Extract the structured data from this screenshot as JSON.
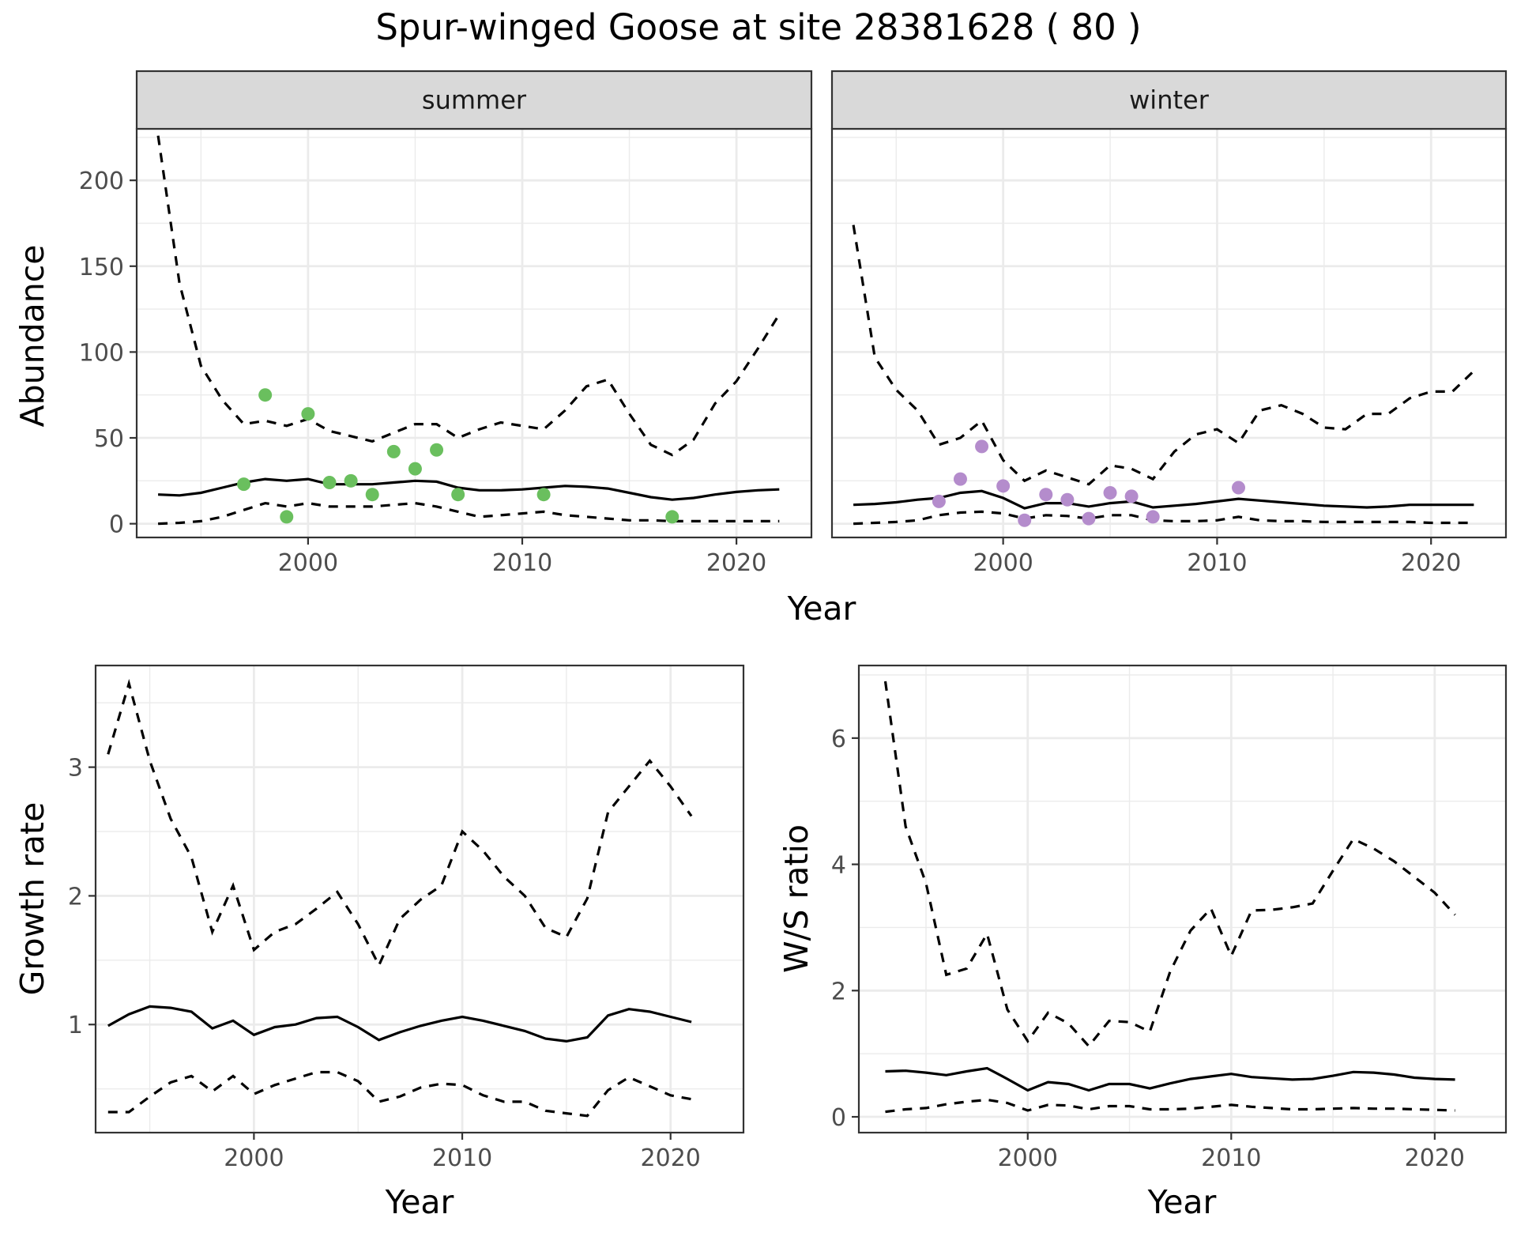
{
  "title": "Spur-winged Goose at site 28381628 ( 80 )",
  "colors": {
    "summer_points": "#6abf5e",
    "winter_points": "#b48ccc",
    "lines": "#000000",
    "strip_background": "#d9d9d9",
    "grid": "#ebebeb"
  },
  "chart_data": [
    {
      "type": "line",
      "facet": "summer",
      "xlabel": "Year",
      "ylabel": "Abundance",
      "xlim": [
        1992,
        2023.5
      ],
      "ylim": [
        -8,
        230
      ],
      "x_ticks": [
        2000,
        2010,
        2020
      ],
      "y_ticks": [
        0,
        50,
        100,
        150,
        200
      ],
      "grid": true,
      "points": {
        "x": [
          1997,
          1998,
          1999,
          2000,
          2001,
          2002,
          2003,
          2004,
          2005,
          2006,
          2007,
          2011,
          2017
        ],
        "y": [
          23,
          75,
          4,
          64,
          24,
          25,
          17,
          42,
          32,
          43,
          17,
          17,
          4
        ]
      },
      "series": [
        {
          "role": "estimate",
          "x": [
            1993,
            1994,
            1995,
            1996,
            1997,
            1998,
            1999,
            2000,
            2001,
            2002,
            2003,
            2004,
            2005,
            2006,
            2007,
            2008,
            2009,
            2010,
            2011,
            2012,
            2013,
            2014,
            2015,
            2016,
            2017,
            2018,
            2019,
            2020,
            2021,
            2022
          ],
          "y": [
            17,
            16.5,
            18,
            21,
            24,
            26,
            25,
            26,
            23,
            23,
            23,
            24,
            25,
            24.5,
            21,
            19.5,
            19.5,
            20,
            21,
            22,
            21.5,
            20.5,
            18,
            15.5,
            14,
            15,
            17,
            18.5,
            19.5,
            20
          ]
        },
        {
          "role": "upper",
          "x": [
            1993,
            1994,
            1995,
            1996,
            1997,
            1998,
            1999,
            2000,
            2001,
            2002,
            2003,
            2004,
            2005,
            2006,
            2007,
            2008,
            2009,
            2010,
            2011,
            2012,
            2013,
            2014,
            2015,
            2016,
            2017,
            2018,
            2019,
            2020,
            2021,
            2022
          ],
          "y": [
            226,
            140,
            92,
            72,
            58,
            60,
            57,
            61,
            54,
            51,
            48,
            53,
            58,
            58,
            50,
            55,
            59,
            57,
            55,
            66,
            80,
            84,
            64,
            46,
            40,
            49,
            70,
            83,
            102,
            122
          ]
        },
        {
          "role": "lower",
          "x": [
            1993,
            1994,
            1995,
            1996,
            1997,
            1998,
            1999,
            2000,
            2001,
            2002,
            2003,
            2004,
            2005,
            2006,
            2007,
            2008,
            2009,
            2010,
            2011,
            2012,
            2013,
            2014,
            2015,
            2016,
            2017,
            2018,
            2019,
            2020,
            2021,
            2022
          ],
          "y": [
            0,
            0.5,
            1.5,
            4,
            8,
            12,
            10,
            12,
            10,
            10,
            10,
            11,
            12,
            10,
            7,
            4,
            5,
            6,
            7,
            5,
            4,
            3,
            2,
            2,
            1.5,
            1.5,
            1.5,
            1.5,
            1.5,
            1.5
          ]
        }
      ]
    },
    {
      "type": "line",
      "facet": "winter",
      "xlabel": "Year",
      "ylabel": "Abundance",
      "xlim": [
        1992,
        2023.5
      ],
      "ylim": [
        -8,
        230
      ],
      "x_ticks": [
        2000,
        2010,
        2020
      ],
      "y_ticks": [
        0,
        50,
        100,
        150,
        200
      ],
      "grid": true,
      "points": {
        "x": [
          1997,
          1998,
          1999,
          2000,
          2001,
          2002,
          2003,
          2004,
          2005,
          2006,
          2007,
          2011
        ],
        "y": [
          13,
          26,
          45,
          22,
          2,
          17,
          14,
          3,
          18,
          16,
          4,
          21
        ]
      },
      "series": [
        {
          "role": "estimate",
          "x": [
            1993,
            1994,
            1995,
            1996,
            1997,
            1998,
            1999,
            2000,
            2001,
            2002,
            2003,
            2004,
            2005,
            2006,
            2007,
            2008,
            2009,
            2010,
            2011,
            2012,
            2013,
            2014,
            2015,
            2016,
            2017,
            2018,
            2019,
            2020,
            2021,
            2022
          ],
          "y": [
            11,
            11.5,
            12.5,
            14,
            15,
            18,
            19,
            15,
            9,
            12,
            12,
            10,
            12,
            13,
            9.5,
            10.5,
            11.5,
            13,
            14.5,
            13.5,
            12.5,
            11.5,
            10.5,
            10,
            9.5,
            10,
            11,
            11,
            11,
            11
          ]
        },
        {
          "role": "upper",
          "x": [
            1993,
            1994,
            1995,
            1996,
            1997,
            1998,
            1999,
            2000,
            2001,
            2002,
            2003,
            2004,
            2005,
            2006,
            2007,
            2008,
            2009,
            2010,
            2011,
            2012,
            2013,
            2014,
            2015,
            2016,
            2017,
            2018,
            2019,
            2020,
            2021,
            2022
          ],
          "y": [
            174,
            97,
            78,
            66,
            46,
            50,
            60,
            37,
            25,
            31,
            27,
            23,
            34,
            32,
            26,
            42,
            52,
            55,
            47,
            66,
            69,
            64,
            56,
            55,
            64,
            64,
            73,
            77,
            77,
            89
          ]
        },
        {
          "role": "lower",
          "x": [
            1993,
            1994,
            1995,
            1996,
            1997,
            1998,
            1999,
            2000,
            2001,
            2002,
            2003,
            2004,
            2005,
            2006,
            2007,
            2008,
            2009,
            2010,
            2011,
            2012,
            2013,
            2014,
            2015,
            2016,
            2017,
            2018,
            2019,
            2020,
            2021,
            2022
          ],
          "y": [
            0,
            0.5,
            1,
            2,
            5,
            6.5,
            7,
            6,
            3,
            5,
            4.5,
            3,
            5,
            5,
            2,
            1.5,
            1.5,
            2,
            4,
            2,
            1.5,
            1.5,
            1,
            1,
            1,
            1,
            1,
            0.5,
            0.5,
            0.5
          ]
        }
      ]
    },
    {
      "type": "line",
      "xlabel": "Year",
      "ylabel": "Growth rate",
      "xlim": [
        1992.4,
        2023.5
      ],
      "ylim": [
        0.16,
        3.79
      ],
      "x_ticks": [
        2000,
        2010,
        2020
      ],
      "y_ticks": [
        1,
        2,
        3
      ],
      "grid": true,
      "series": [
        {
          "role": "estimate",
          "x": [
            1993,
            1994,
            1995,
            1996,
            1997,
            1998,
            1999,
            2000,
            2001,
            2002,
            2003,
            2004,
            2005,
            2006,
            2007,
            2008,
            2009,
            2010,
            2011,
            2012,
            2013,
            2014,
            2015,
            2016,
            2017,
            2018,
            2019,
            2020,
            2021
          ],
          "y": [
            0.99,
            1.08,
            1.14,
            1.13,
            1.1,
            0.97,
            1.03,
            0.92,
            0.98,
            1.0,
            1.05,
            1.06,
            0.98,
            0.88,
            0.94,
            0.99,
            1.03,
            1.06,
            1.03,
            0.99,
            0.95,
            0.89,
            0.87,
            0.9,
            1.07,
            1.12,
            1.1,
            1.06,
            1.02
          ]
        },
        {
          "role": "upper",
          "x": [
            1993,
            1994,
            1995,
            1996,
            1997,
            1998,
            1999,
            2000,
            2001,
            2002,
            2003,
            2004,
            2005,
            2006,
            2007,
            2008,
            2009,
            2010,
            2011,
            2012,
            2013,
            2014,
            2015,
            2016,
            2017,
            2018,
            2019,
            2020,
            2021
          ],
          "y": [
            3.1,
            3.65,
            3.05,
            2.6,
            2.3,
            1.72,
            2.08,
            1.58,
            1.72,
            1.78,
            1.9,
            2.03,
            1.78,
            1.46,
            1.82,
            1.97,
            2.08,
            2.5,
            2.35,
            2.15,
            2.0,
            1.75,
            1.68,
            1.98,
            2.65,
            2.85,
            3.05,
            2.85,
            2.62
          ]
        },
        {
          "role": "lower",
          "x": [
            1993,
            1994,
            1995,
            1996,
            1997,
            1998,
            1999,
            2000,
            2001,
            2002,
            2003,
            2004,
            2005,
            2006,
            2007,
            2008,
            2009,
            2010,
            2011,
            2012,
            2013,
            2014,
            2015,
            2016,
            2017,
            2018,
            2019,
            2020,
            2021
          ],
          "y": [
            0.32,
            0.32,
            0.44,
            0.55,
            0.6,
            0.48,
            0.6,
            0.46,
            0.53,
            0.58,
            0.63,
            0.63,
            0.56,
            0.4,
            0.44,
            0.51,
            0.54,
            0.53,
            0.45,
            0.4,
            0.4,
            0.33,
            0.31,
            0.29,
            0.49,
            0.59,
            0.52,
            0.45,
            0.42
          ]
        }
      ]
    },
    {
      "type": "line",
      "xlabel": "Year",
      "ylabel": "W/S ratio",
      "xlim": [
        1991.7,
        2023.5
      ],
      "ylim": [
        -0.25,
        7.15
      ],
      "x_ticks": [
        2000,
        2010,
        2020
      ],
      "y_ticks": [
        0,
        2,
        4,
        6
      ],
      "grid": true,
      "series": [
        {
          "role": "estimate",
          "x": [
            1993,
            1994,
            1995,
            1996,
            1997,
            1998,
            1999,
            2000,
            2001,
            2002,
            2003,
            2004,
            2005,
            2006,
            2007,
            2008,
            2009,
            2010,
            2011,
            2012,
            2013,
            2014,
            2015,
            2016,
            2017,
            2018,
            2019,
            2020,
            2021
          ],
          "y": [
            0.72,
            0.73,
            0.7,
            0.66,
            0.72,
            0.77,
            0.6,
            0.42,
            0.55,
            0.52,
            0.42,
            0.52,
            0.52,
            0.45,
            0.53,
            0.6,
            0.64,
            0.68,
            0.63,
            0.61,
            0.59,
            0.6,
            0.65,
            0.71,
            0.7,
            0.67,
            0.62,
            0.6,
            0.59
          ]
        },
        {
          "role": "upper",
          "x": [
            1993,
            1994,
            1995,
            1996,
            1997,
            1998,
            1999,
            2000,
            2001,
            2002,
            2003,
            2004,
            2005,
            2006,
            2007,
            2008,
            2009,
            2010,
            2011,
            2012,
            2013,
            2014,
            2015,
            2016,
            2017,
            2018,
            2019,
            2020,
            2021
          ],
          "y": [
            6.9,
            4.6,
            3.7,
            2.25,
            2.35,
            2.9,
            1.7,
            1.2,
            1.65,
            1.48,
            1.12,
            1.52,
            1.5,
            1.35,
            2.3,
            2.95,
            3.3,
            2.55,
            3.27,
            3.28,
            3.32,
            3.38,
            3.9,
            4.4,
            4.25,
            4.05,
            3.8,
            3.55,
            3.2
          ]
        },
        {
          "role": "lower",
          "x": [
            1993,
            1994,
            1995,
            1996,
            1997,
            1998,
            1999,
            2000,
            2001,
            2002,
            2003,
            2004,
            2005,
            2006,
            2007,
            2008,
            2009,
            2010,
            2011,
            2012,
            2013,
            2014,
            2015,
            2016,
            2017,
            2018,
            2019,
            2020,
            2021
          ],
          "y": [
            0.08,
            0.12,
            0.14,
            0.2,
            0.24,
            0.27,
            0.22,
            0.1,
            0.19,
            0.18,
            0.12,
            0.17,
            0.17,
            0.12,
            0.12,
            0.13,
            0.16,
            0.19,
            0.16,
            0.14,
            0.12,
            0.12,
            0.13,
            0.14,
            0.13,
            0.13,
            0.12,
            0.11,
            0.1
          ]
        }
      ]
    }
  ]
}
